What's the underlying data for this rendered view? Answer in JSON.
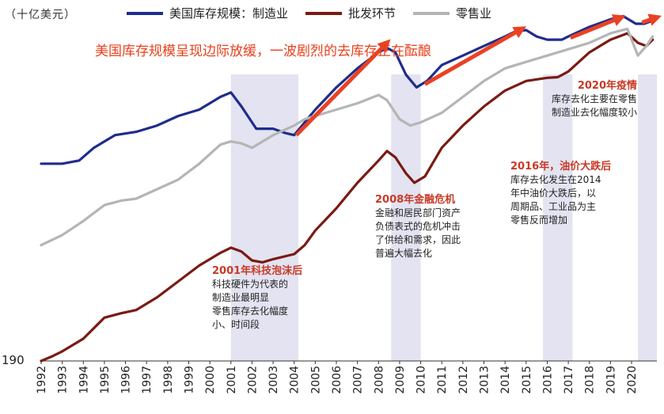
{
  "unit_label": "（十亿美元）",
  "headline": "美国库存规模呈现边际放缓，一波剧烈的去库存正在酝酿",
  "legend": [
    {
      "label": "美国库存规模：制造业",
      "color": "#1f2d8c"
    },
    {
      "label": "批发环节",
      "color": "#7a1a14"
    },
    {
      "label": "零售业",
      "color": "#b5b5b5"
    }
  ],
  "annotations": {
    "a2001": {
      "title": "2001年科技泡沫后",
      "lines": [
        "科技硬件为代表的",
        "制造业最明显",
        "零售库存去化幅度",
        "小、时间段"
      ]
    },
    "a2008": {
      "title": "2008年金融危机",
      "lines": [
        "金融和居民部门资产",
        "负债表式的危机冲击",
        "了供给和需求，因此",
        "普遍大幅去化"
      ]
    },
    "a2016": {
      "title": "2016年，油价大跌后",
      "lines": [
        "库存去化发生在2014",
        "年中油价大跌后，以",
        "周期品、工业品为主",
        "零售反而增加"
      ]
    },
    "a2020": {
      "title": "2020年疫情",
      "lines": [
        "库存去化主要在零售",
        "制造业去化幅度较小"
      ]
    }
  },
  "chart_data": {
    "type": "line",
    "x_ticks": [
      "1992",
      "1993",
      "1994",
      "1995",
      "1996",
      "1997",
      "1998",
      "1999",
      "2000",
      "2001",
      "2002",
      "2003",
      "2004",
      "2005",
      "2006",
      "2007",
      "2008",
      "2009",
      "2010",
      "2011",
      "2012",
      "2013",
      "2014",
      "2015",
      "2016",
      "2017",
      "2018",
      "2019",
      "2020"
    ],
    "y_tick_label": "190",
    "x_range": [
      1992,
      2021.2
    ],
    "y_range": [
      190,
      720
    ],
    "shaded_periods": [
      [
        2001.0,
        2004.2
      ],
      [
        2008.6,
        2010.0
      ],
      [
        2015.8,
        2017.2
      ],
      [
        2020.3,
        2021.2
      ]
    ],
    "series": [
      {
        "name": "美国库存规模：制造业",
        "color": "#1f2d8c",
        "points": [
          [
            1992,
            500
          ],
          [
            1993,
            500
          ],
          [
            1993.8,
            505
          ],
          [
            1994.5,
            525
          ],
          [
            1995.5,
            545
          ],
          [
            1996.5,
            550
          ],
          [
            1997.5,
            560
          ],
          [
            1998.5,
            575
          ],
          [
            1999.5,
            585
          ],
          [
            2000.5,
            605
          ],
          [
            2001.0,
            612
          ],
          [
            2001.5,
            590
          ],
          [
            2002.2,
            555
          ],
          [
            2003.0,
            555
          ],
          [
            2003.6,
            548
          ],
          [
            2004.0,
            545
          ],
          [
            2004.5,
            565
          ],
          [
            2005,
            585
          ],
          [
            2006,
            620
          ],
          [
            2007,
            650
          ],
          [
            2008,
            675
          ],
          [
            2008.4,
            682
          ],
          [
            2008.8,
            675
          ],
          [
            2009.3,
            640
          ],
          [
            2009.8,
            620
          ],
          [
            2010.3,
            630
          ],
          [
            2011,
            655
          ],
          [
            2012,
            670
          ],
          [
            2013,
            685
          ],
          [
            2014,
            700
          ],
          [
            2014.5,
            708
          ],
          [
            2015,
            710
          ],
          [
            2015.5,
            700
          ],
          [
            2016,
            695
          ],
          [
            2016.7,
            695
          ],
          [
            2017,
            700
          ],
          [
            2018,
            715
          ],
          [
            2019,
            727
          ],
          [
            2019.6,
            732
          ],
          [
            2020.2,
            720
          ],
          [
            2020.6,
            720
          ],
          [
            2021,
            725
          ]
        ]
      },
      {
        "name": "批发环节",
        "color": "#7a1a14",
        "points": [
          [
            1992,
            190
          ],
          [
            1992.5,
            197
          ],
          [
            1993,
            205
          ],
          [
            1994,
            225
          ],
          [
            1995,
            258
          ],
          [
            1995.8,
            265
          ],
          [
            1996.5,
            270
          ],
          [
            1997.5,
            290
          ],
          [
            1998.5,
            315
          ],
          [
            1999.5,
            340
          ],
          [
            2000.5,
            360
          ],
          [
            2001,
            368
          ],
          [
            2001.5,
            362
          ],
          [
            2002,
            348
          ],
          [
            2002.5,
            345
          ],
          [
            2003,
            350
          ],
          [
            2004,
            358
          ],
          [
            2004.5,
            372
          ],
          [
            2005,
            395
          ],
          [
            2006,
            430
          ],
          [
            2007,
            470
          ],
          [
            2008,
            505
          ],
          [
            2008.4,
            520
          ],
          [
            2008.8,
            510
          ],
          [
            2009.3,
            485
          ],
          [
            2009.7,
            470
          ],
          [
            2010.2,
            480
          ],
          [
            2011,
            525
          ],
          [
            2012,
            560
          ],
          [
            2013,
            590
          ],
          [
            2014,
            615
          ],
          [
            2015,
            630
          ],
          [
            2016,
            635
          ],
          [
            2016.5,
            636
          ],
          [
            2017,
            645
          ],
          [
            2018,
            675
          ],
          [
            2019,
            695
          ],
          [
            2019.8,
            705
          ],
          [
            2020.3,
            690
          ],
          [
            2020.7,
            685
          ],
          [
            2021,
            695
          ]
        ]
      },
      {
        "name": "零售业",
        "color": "#b5b5b5",
        "points": [
          [
            1992,
            372
          ],
          [
            1993,
            388
          ],
          [
            1994,
            410
          ],
          [
            1995,
            435
          ],
          [
            1995.8,
            442
          ],
          [
            1996.5,
            445
          ],
          [
            1997.5,
            460
          ],
          [
            1998.5,
            475
          ],
          [
            1999.5,
            500
          ],
          [
            2000.5,
            530
          ],
          [
            2001,
            535
          ],
          [
            2001.5,
            532
          ],
          [
            2002,
            525
          ],
          [
            2002.5,
            535
          ],
          [
            2003,
            545
          ],
          [
            2004,
            560
          ],
          [
            2004.5,
            570
          ],
          [
            2005,
            575
          ],
          [
            2006,
            585
          ],
          [
            2007,
            595
          ],
          [
            2008,
            608
          ],
          [
            2008.4,
            600
          ],
          [
            2009,
            570
          ],
          [
            2009.5,
            560
          ],
          [
            2010,
            565
          ],
          [
            2011,
            580
          ],
          [
            2012,
            605
          ],
          [
            2013,
            630
          ],
          [
            2014,
            650
          ],
          [
            2015,
            660
          ],
          [
            2016,
            670
          ],
          [
            2017,
            680
          ],
          [
            2018,
            690
          ],
          [
            2019,
            705
          ],
          [
            2019.8,
            712
          ],
          [
            2020.3,
            670
          ],
          [
            2020.7,
            685
          ],
          [
            2021,
            700
          ]
        ]
      }
    ],
    "arrows": [
      {
        "from": [
          2004.1,
          545
        ],
        "to": [
          2008.4,
          690
        ]
      },
      {
        "from": [
          2010.2,
          625
        ],
        "to": [
          2014.8,
          712
        ]
      },
      {
        "from": [
          2017.1,
          698
        ],
        "to": [
          2019.5,
          730
        ]
      },
      {
        "from": [
          2020.5,
          722
        ],
        "to": [
          2021.2,
          730
        ]
      }
    ]
  }
}
